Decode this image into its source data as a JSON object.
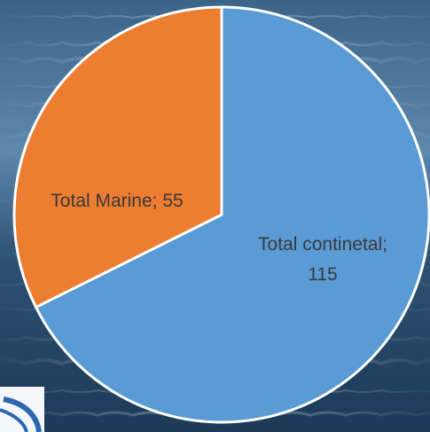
{
  "chart_data": {
    "type": "pie",
    "title": "",
    "slices": [
      {
        "name": "Total continetal",
        "value": 115,
        "color": "#5b9bd5",
        "label_lines": [
          "Total continetal;",
          "115"
        ]
      },
      {
        "name": "Total Marine",
        "value": 55,
        "color": "#ed7d31",
        "label_lines": [
          "Total Marine; 55"
        ]
      }
    ],
    "start_angle_deg": 0,
    "direction": "clockwise",
    "slice_border_color": "#ffffff",
    "legend": "none"
  },
  "background": {
    "description_colors": [
      "#1f3d5c",
      "#4e7aa0",
      "#9fc0da"
    ]
  }
}
